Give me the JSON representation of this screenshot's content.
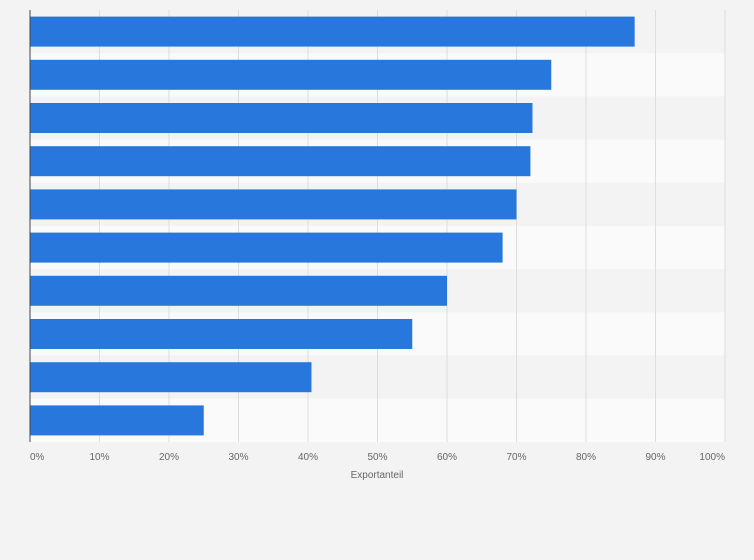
{
  "chart_data": {
    "type": "bar",
    "orientation": "horizontal",
    "categories": [
      "",
      "",
      "",
      "",
      "",
      "",
      "",
      "",
      "",
      ""
    ],
    "values": [
      87,
      75,
      72.3,
      72,
      70,
      68,
      60,
      55,
      40.5,
      25
    ],
    "xlabel": "Exportanteil",
    "ylabel": "",
    "xlim": [
      0,
      100
    ],
    "x_ticks": [
      "0%",
      "10%",
      "20%",
      "30%",
      "40%",
      "50%",
      "60%",
      "70%",
      "80%",
      "90%",
      "100%"
    ],
    "grid": true,
    "bar_color": "#2877dd",
    "background_colors": [
      "#f3f3f3",
      "#fafafa"
    ]
  }
}
